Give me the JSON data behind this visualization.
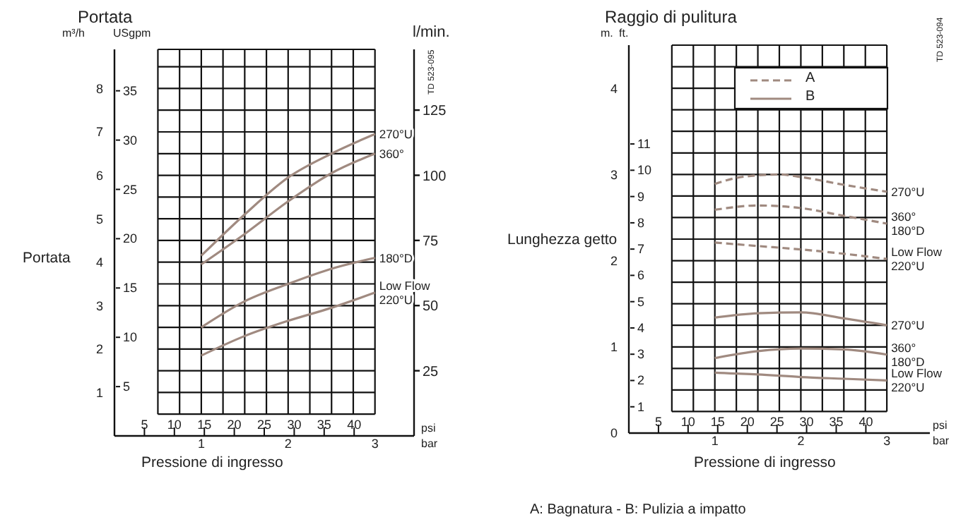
{
  "chart_data": [
    {
      "type": "line",
      "title": "Portata",
      "ylabel": "Portata",
      "xlabel": "Pressione di ingresso",
      "xlim": [
        0,
        3.45
      ],
      "xticks": [
        {
          "value": 0.5,
          "label": null
        },
        {
          "value": 0.75,
          "label": null
        },
        1,
        {
          "value": 1.25,
          "label": null
        },
        {
          "value": 1.5,
          "label": null
        },
        {
          "value": 1.75,
          "label": null
        },
        2,
        {
          "value": 2.25,
          "label": null
        },
        {
          "value": 2.5,
          "label": null
        },
        {
          "value": 2.75,
          "label": null
        },
        3
      ],
      "x2lim": [
        0,
        50
      ],
      "x2ticks": [
        5,
        10,
        15,
        20,
        25,
        30,
        35,
        40
      ],
      "ylim": [
        0,
        8.9
      ],
      "yticks": [
        {
          "value": 0.5,
          "label": null
        },
        1,
        {
          "value": 1.5,
          "label": null
        },
        2,
        {
          "value": 2.5,
          "label": null
        },
        3,
        {
          "value": 3.5,
          "label": null
        },
        4,
        {
          "value": 4.5,
          "label": null
        },
        5,
        {
          "value": 5.5,
          "label": null
        },
        6,
        {
          "value": 6.5,
          "label": null
        },
        7,
        {
          "value": 7.5,
          "label": null
        },
        8,
        {
          "value": 8.5,
          "label": null
        }
      ],
      "y2lim": [
        0,
        148.3
      ],
      "y2ticks": [
        25,
        50,
        75,
        100,
        125
      ],
      "y3lim": [
        0,
        39.2
      ],
      "y3ticks": [
        5,
        10,
        15,
        20,
        25,
        30,
        35
      ],
      "grid": true,
      "annotations": [
        "m³/h",
        "USgpm",
        "l/min.",
        "psi",
        "bar",
        "TD 523-095"
      ],
      "series": [
        {
          "name": "270°U",
          "color": "#a08a80",
          "line_style": "solid",
          "x": [
            1,
            1.5,
            2,
            2.5,
            3
          ],
          "values": [
            4.15,
            5.1,
            5.95,
            6.5,
            6.95
          ]
        },
        {
          "name": "360°",
          "color": "#a08a80",
          "line_style": "solid",
          "x": [
            1,
            1.5,
            2,
            2.5,
            3
          ],
          "values": [
            3.95,
            4.65,
            5.4,
            6.05,
            6.5
          ]
        },
        {
          "name": "180°D",
          "color": "#a08a80",
          "line_style": "solid",
          "x": [
            1,
            1.5,
            2,
            2.5,
            3
          ],
          "values": [
            2.5,
            3.1,
            3.5,
            3.85,
            4.1
          ]
        },
        {
          "name": "Low Flow\n220°U",
          "color": "#a08a80",
          "line_style": "solid",
          "x": [
            1,
            1.5,
            2,
            2.5,
            3
          ],
          "values": [
            1.85,
            2.3,
            2.65,
            2.95,
            3.3
          ]
        }
      ]
    },
    {
      "type": "line",
      "title": "Raggio di pulitura",
      "ylabel": "Lunghezza getto",
      "xlabel": "Pressione di ingresso",
      "xlim": [
        0,
        3.5
      ],
      "xticks": [
        {
          "value": 0.5,
          "label": null
        },
        {
          "value": 0.75,
          "label": null
        },
        1,
        {
          "value": 1.25,
          "label": null
        },
        {
          "value": 1.5,
          "label": null
        },
        {
          "value": 1.75,
          "label": null
        },
        2,
        {
          "value": 2.25,
          "label": null
        },
        {
          "value": 2.5,
          "label": null
        },
        {
          "value": 2.75,
          "label": null
        },
        3
      ],
      "x2lim": [
        0,
        50.8
      ],
      "x2ticks": [
        5,
        10,
        15,
        20,
        25,
        30,
        35,
        40
      ],
      "ylim": [
        0,
        4.5
      ],
      "yticks": [
        0,
        {
          "value": 0.25,
          "label": null
        },
        {
          "value": 0.5,
          "label": null
        },
        {
          "value": 0.75,
          "label": null
        },
        1,
        {
          "value": 1.25,
          "label": null
        },
        {
          "value": 1.5,
          "label": null
        },
        {
          "value": 1.75,
          "label": null
        },
        2,
        {
          "value": 2.25,
          "label": null
        },
        {
          "value": 2.5,
          "label": null
        },
        {
          "value": 2.75,
          "label": null
        },
        3,
        {
          "value": 3.25,
          "label": null
        },
        {
          "value": 3.5,
          "label": null
        },
        {
          "value": 3.75,
          "label": null
        },
        4,
        {
          "value": 4.25,
          "label": null
        }
      ],
      "y3lim": [
        0,
        14.76
      ],
      "y3ticks": [
        1,
        2,
        3,
        4,
        5,
        6,
        7,
        8,
        9,
        10,
        11
      ],
      "grid": true,
      "annotations": [
        "m.",
        "ft.",
        "psi",
        "bar",
        "TD 523-094",
        "A",
        "B",
        "A: Bagnatura - B: Pulizia a impatto"
      ],
      "series": [
        {
          "name": "270°U",
          "color": "#a08a80",
          "line_style": "dashed",
          "x": [
            1,
            1.25,
            1.5,
            1.75,
            2,
            2.5,
            3
          ],
          "values": [
            2.89,
            2.96,
            2.99,
            3.0,
            2.97,
            2.88,
            2.8
          ]
        },
        {
          "name": "360°\n180°D",
          "color": "#a08a80",
          "line_style": "dashed",
          "x": [
            1,
            1.5,
            2,
            2.5,
            3
          ],
          "values": [
            2.59,
            2.64,
            2.61,
            2.52,
            2.43
          ]
        },
        {
          "name": "Low Flow\n220°U",
          "color": "#a08a80",
          "line_style": "dashed",
          "x": [
            1,
            1.5,
            2,
            2.5,
            3
          ],
          "values": [
            2.21,
            2.17,
            2.13,
            2.08,
            2.02
          ]
        },
        {
          "name": "270°U",
          "color": "#a08a80",
          "line_style": "solid",
          "x": [
            1,
            1.5,
            2,
            2.5,
            3
          ],
          "values": [
            1.34,
            1.39,
            1.4,
            1.33,
            1.25
          ]
        },
        {
          "name": "360°\n180°D",
          "color": "#a08a80",
          "line_style": "solid",
          "x": [
            1,
            1.5,
            2,
            2.5,
            3
          ],
          "values": [
            0.87,
            0.95,
            0.98,
            0.97,
            0.91
          ]
        },
        {
          "name": "Low Flow\n220°U",
          "color": "#a08a80",
          "line_style": "solid",
          "x": [
            1,
            1.5,
            2,
            2.5,
            3
          ],
          "values": [
            0.7,
            0.68,
            0.65,
            0.63,
            0.61
          ]
        }
      ]
    }
  ]
}
